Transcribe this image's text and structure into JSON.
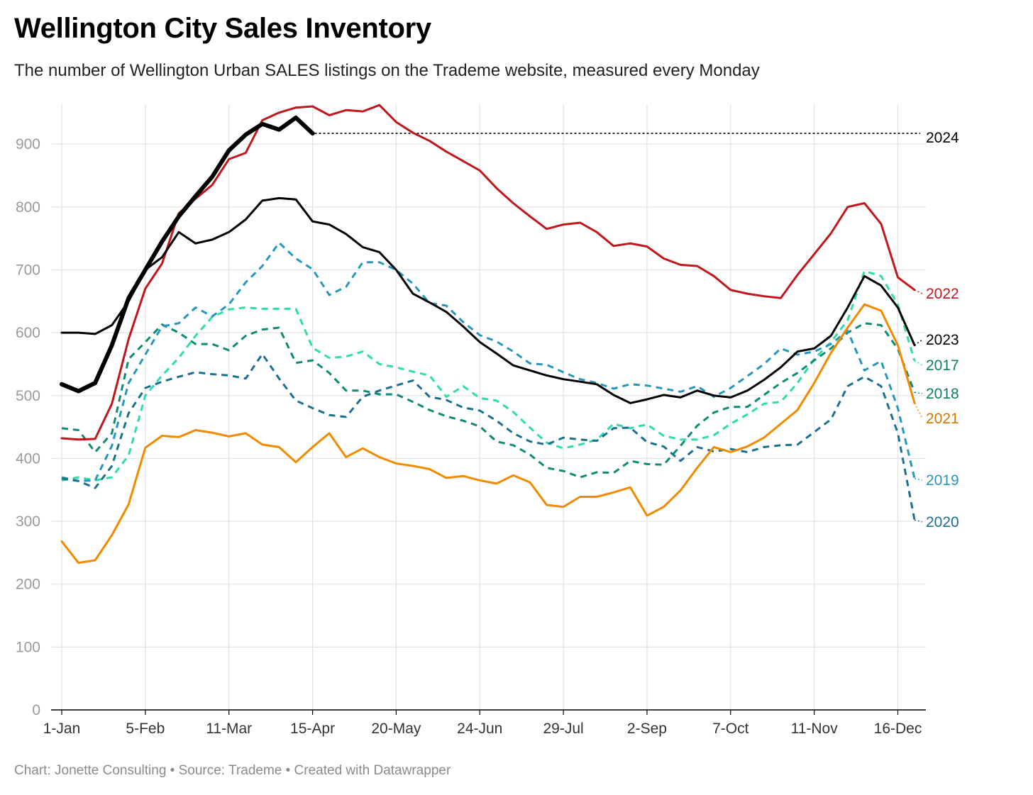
{
  "header": {
    "title": "Wellington City Sales Inventory",
    "subtitle": "The number of Wellington Urban SALES listings on the Trademe website, measured every Monday"
  },
  "footer": {
    "credit": "Chart: Jonette Consulting • Source: Trademe • Created with Datawrapper"
  },
  "chart_data": {
    "type": "line",
    "x_axis": {
      "unit": "week",
      "tick_weeks": [
        0,
        5,
        10,
        15,
        20,
        25,
        30,
        35,
        40,
        45,
        50
      ],
      "tick_labels": [
        "1-Jan",
        "5-Feb",
        "11-Mar",
        "15-Apr",
        "20-May",
        "24-Jun",
        "29-Jul",
        "2-Sep",
        "7-Oct",
        "11-Nov",
        "16-Dec"
      ],
      "range": [
        0,
        52
      ]
    },
    "y_axis": {
      "ticks": [
        0,
        100,
        200,
        300,
        400,
        500,
        600,
        700,
        800,
        900
      ],
      "range": [
        0,
        970
      ]
    },
    "grid": true,
    "colors": {
      "s2024": "#000000",
      "s2023": "#000000",
      "s2022": "#c0161c",
      "s2021": "#f28a00",
      "s2020": "#1b6f8f",
      "s2019": "#2896bb",
      "s2018": "#0f8a73",
      "s2017": "#2fdcaa",
      "grid": "#e2e2e2",
      "reference": "#000000"
    },
    "reference_line": {
      "value": 917,
      "from_week": 15,
      "label": "2024"
    },
    "series": [
      {
        "name": "2024",
        "label": "2024",
        "style": "solid",
        "width": 6,
        "values": [
          518,
          507,
          520,
          580,
          655,
          700,
          745,
          785,
          817,
          848,
          890,
          915,
          932,
          923,
          942,
          917
        ]
      },
      {
        "name": "2023",
        "label": "2023",
        "style": "solid",
        "width": 3,
        "values": [
          600,
          600,
          598,
          612,
          650,
          700,
          720,
          760,
          742,
          748,
          760,
          780,
          810,
          814,
          812,
          777,
          772,
          757,
          736,
          728,
          700,
          662,
          648,
          633,
          610,
          585,
          567,
          548,
          540,
          532,
          526,
          522,
          518,
          501,
          488,
          494,
          501,
          497,
          508,
          500,
          497,
          508,
          525,
          545,
          570,
          575,
          595,
          640,
          690,
          675,
          640,
          580
        ]
      },
      {
        "name": "2022",
        "label": "2022",
        "style": "solid",
        "width": 3,
        "values": [
          432,
          430,
          431,
          487,
          590,
          670,
          710,
          790,
          813,
          835,
          876,
          886,
          938,
          950,
          958,
          960,
          946,
          954,
          952,
          962,
          935,
          918,
          905,
          888,
          873,
          858,
          830,
          806,
          785,
          765,
          772,
          775,
          760,
          738,
          742,
          737,
          718,
          708,
          706,
          690,
          668,
          662,
          658,
          655,
          692,
          725,
          758,
          800,
          806,
          773,
          688,
          668
        ]
      },
      {
        "name": "2021",
        "label": "2021",
        "style": "solid",
        "width": 3,
        "values": [
          268,
          234,
          238,
          278,
          327,
          417,
          436,
          434,
          445,
          441,
          435,
          440,
          422,
          418,
          394,
          418,
          440,
          402,
          416,
          402,
          392,
          388,
          383,
          369,
          372,
          365,
          360,
          373,
          362,
          326,
          323,
          339,
          339,
          346,
          354,
          309,
          323,
          349,
          385,
          418,
          410,
          419,
          433,
          455,
          477,
          520,
          568,
          608,
          645,
          635,
          580,
          488
        ]
      },
      {
        "name": "2020",
        "label": "2020",
        "style": "dashed",
        "width": 3,
        "values": [
          368,
          364,
          353,
          388,
          472,
          512,
          522,
          530,
          537,
          534,
          532,
          527,
          566,
          527,
          492,
          480,
          469,
          466,
          498,
          508,
          516,
          524,
          498,
          493,
          481,
          476,
          460,
          440,
          427,
          422,
          433,
          430,
          428,
          448,
          449,
          426,
          419,
          396,
          418,
          411,
          415,
          410,
          418,
          421,
          422,
          442,
          462,
          515,
          530,
          515,
          440,
          302
        ]
      },
      {
        "name": "2019",
        "label": "2019",
        "style": "dashed",
        "width": 3,
        "values": [
          370,
          364,
          365,
          420,
          520,
          565,
          610,
          615,
          640,
          626,
          645,
          680,
          706,
          743,
          718,
          701,
          660,
          673,
          712,
          712,
          700,
          678,
          647,
          643,
          617,
          596,
          586,
          570,
          551,
          549,
          537,
          526,
          520,
          511,
          518,
          516,
          511,
          506,
          515,
          498,
          512,
          531,
          550,
          575,
          565,
          570,
          582,
          603,
          540,
          555,
          480,
          368
        ]
      },
      {
        "name": "2018",
        "label": "2018",
        "style": "dashed",
        "width": 3,
        "values": [
          448,
          445,
          410,
          440,
          558,
          585,
          613,
          600,
          582,
          582,
          572,
          595,
          605,
          608,
          552,
          556,
          536,
          508,
          508,
          502,
          502,
          490,
          477,
          467,
          460,
          451,
          427,
          421,
          406,
          385,
          380,
          370,
          378,
          377,
          396,
          391,
          390,
          420,
          452,
          473,
          482,
          482,
          501,
          520,
          536,
          556,
          575,
          600,
          615,
          612,
          574,
          505
        ]
      },
      {
        "name": "2017",
        "label": "2017",
        "style": "dashed",
        "width": 3,
        "values": [
          365,
          370,
          365,
          370,
          405,
          500,
          532,
          560,
          595,
          625,
          637,
          640,
          638,
          638,
          638,
          576,
          560,
          562,
          570,
          550,
          545,
          538,
          532,
          498,
          515,
          496,
          492,
          474,
          449,
          425,
          416,
          422,
          430,
          455,
          448,
          454,
          436,
          430,
          430,
          437,
          455,
          470,
          487,
          490,
          520,
          558,
          585,
          620,
          698,
          690,
          645,
          555
        ]
      }
    ]
  }
}
